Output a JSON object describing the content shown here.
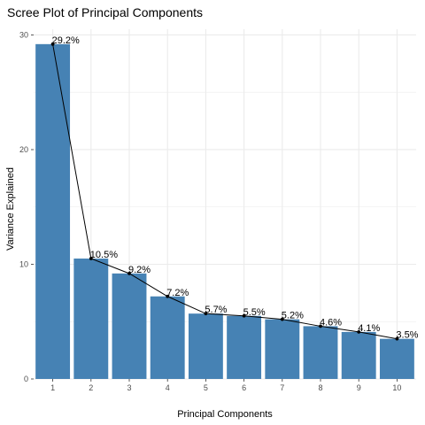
{
  "chart_data": {
    "type": "bar",
    "title": "Scree Plot of Principal Components",
    "xlabel": "Principal Components",
    "ylabel": "Variance Explained",
    "categories": [
      "1",
      "2",
      "3",
      "4",
      "5",
      "6",
      "7",
      "8",
      "9",
      "10"
    ],
    "values": [
      29.2,
      10.5,
      9.2,
      7.2,
      5.7,
      5.5,
      5.2,
      4.6,
      4.1,
      3.5
    ],
    "data_labels": [
      "29.2%",
      "10.5%",
      "9.2%",
      "7.2%",
      "5.7%",
      "5.5%",
      "5.2%",
      "4.6%",
      "4.1%",
      "3.5%"
    ],
    "overlay": "line-with-points",
    "ylim": [
      0,
      30.5
    ],
    "yticks": [
      0,
      10,
      20,
      30
    ],
    "grid": true,
    "bar_color": "#4682B4",
    "line_color": "#000000",
    "grid_color": "#ebebeb"
  }
}
